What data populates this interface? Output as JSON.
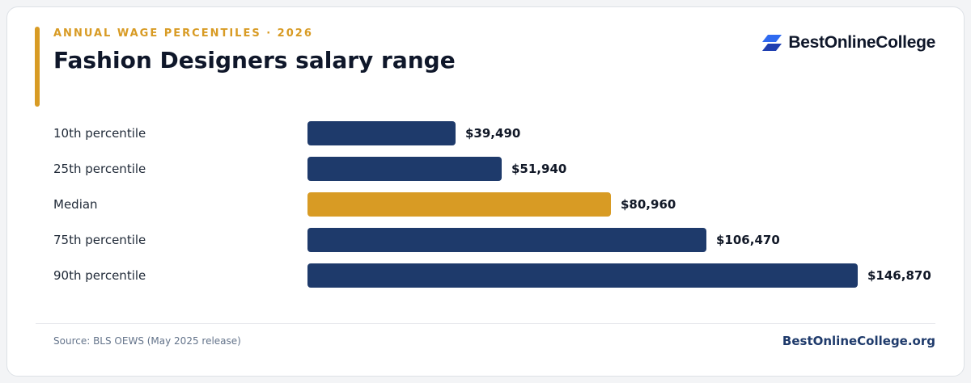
{
  "header": {
    "eyebrow": "ANNUAL WAGE PERCENTILES · 2026",
    "title": "Fashion Designers salary range"
  },
  "brand": {
    "logo_text": "BestOnlineCollege",
    "logo_icon": "stacked-parallelogram-logo-icon"
  },
  "colors": {
    "accent": "#d89b24",
    "bar": "#1e3a6b",
    "logo_light": "#2f6af0",
    "logo_dark": "#1f3fb0"
  },
  "chart_data": {
    "type": "bar",
    "orientation": "horizontal",
    "categories": [
      "10th percentile",
      "25th percentile",
      "Median",
      "75th percentile",
      "90th percentile"
    ],
    "values": [
      39490,
      51940,
      80960,
      106470,
      146870
    ],
    "value_labels": [
      "$39,490",
      "$51,940",
      "$80,960",
      "$106,470",
      "$146,870"
    ],
    "highlight": "Median",
    "xlim": [
      0,
      146870
    ],
    "grid": false
  },
  "footer": {
    "source": "Source: BLS OEWS (May 2025 release)",
    "site": "BestOnlineCollege.org"
  }
}
